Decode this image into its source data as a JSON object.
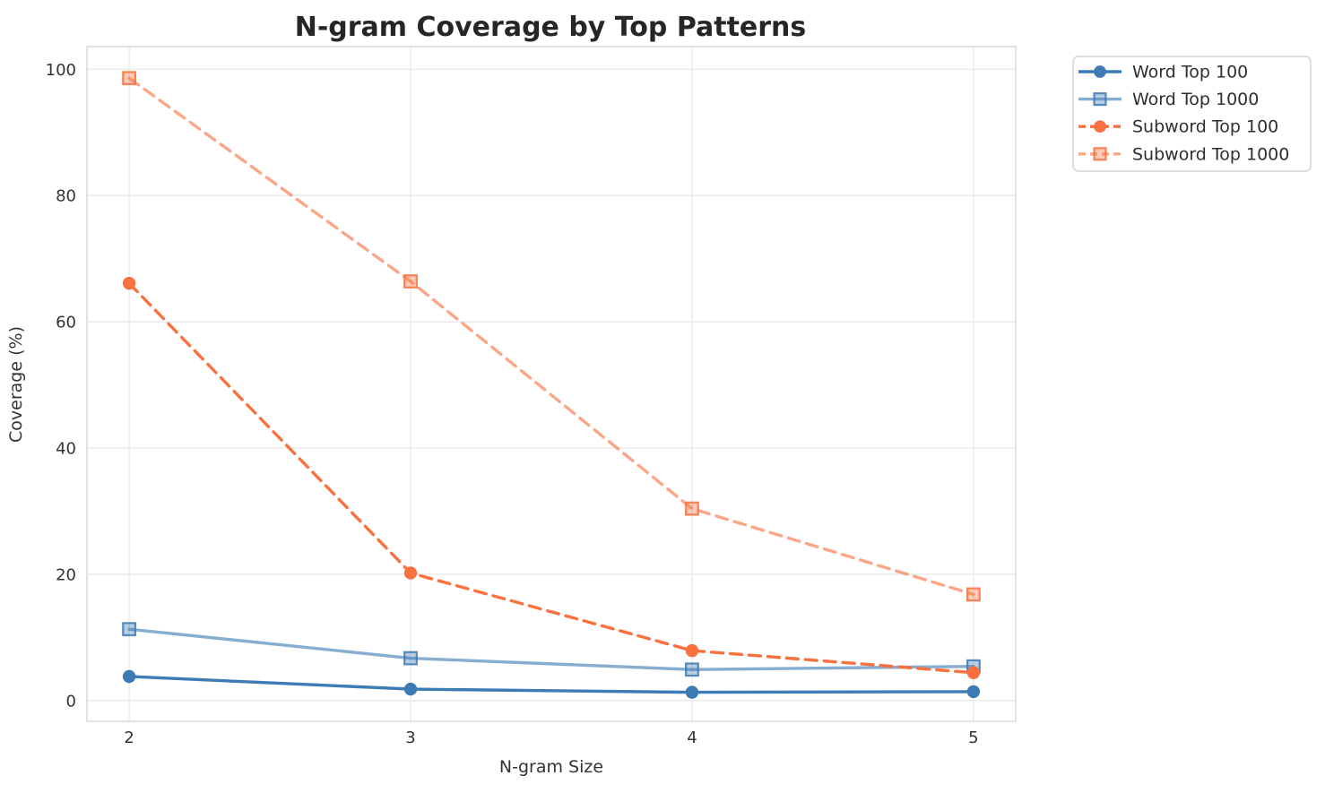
{
  "page": {
    "background": "#ffffff"
  },
  "chart_data": {
    "type": "line",
    "title": "N-gram Coverage by Top Patterns",
    "xlabel": "N-gram Size",
    "ylabel": "Coverage (%)",
    "x": [
      2,
      3,
      4,
      5
    ],
    "xtick_labels": [
      "2",
      "3",
      "4",
      "5"
    ],
    "ytick_values": [
      0,
      20,
      40,
      60,
      80,
      100
    ],
    "ytick_labels": [
      "0",
      "20",
      "40",
      "60",
      "80",
      "100"
    ],
    "xlim": [
      1.85,
      5.15
    ],
    "ylim": [
      -3.3,
      103.6
    ],
    "grid": true,
    "legend_position": "upper-right-outside",
    "series": [
      {
        "name": "Word Top 100",
        "values": [
          3.8,
          1.8,
          1.3,
          1.4
        ],
        "color": "#3d7bb4",
        "line_style": "solid",
        "marker": "circle",
        "opacity": 1
      },
      {
        "name": "Word Top 1000",
        "values": [
          11.3,
          6.7,
          4.9,
          5.4
        ],
        "color": "#3d7bb4",
        "line_style": "solid",
        "marker": "square",
        "opacity": 0.62
      },
      {
        "name": "Subword Top 100",
        "values": [
          66.1,
          20.2,
          7.9,
          4.4
        ],
        "color": "#f8713e",
        "line_style": "dashed",
        "marker": "circle",
        "opacity": 1
      },
      {
        "name": "Subword Top 1000",
        "values": [
          98.6,
          66.4,
          30.4,
          16.8
        ],
        "color": "#f8713e",
        "line_style": "dashed",
        "marker": "square",
        "opacity": 0.62
      }
    ],
    "colors": {
      "grid": "#eaeaea",
      "plot_border": "#d8d8d8",
      "title_text": "#262626",
      "axis_text": "#333333",
      "legend_border": "#d4d4d4",
      "legend_background": "#ffffff",
      "legend_text": "#2e2e2e"
    }
  }
}
